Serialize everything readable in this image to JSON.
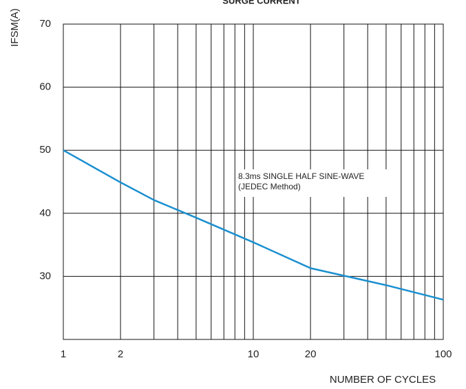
{
  "chart_data": {
    "type": "line",
    "title": "SURGE CURRENT",
    "xlabel": "NUMBER OF CYCLES",
    "ylabel": "IFSM(A)",
    "annotation": [
      "8.3ms SINGLE HALF SINE-WAVE",
      "(JEDEC Method)"
    ],
    "xscale": "log",
    "xlim": [
      1,
      100
    ],
    "xticks": [
      1,
      2,
      10,
      20,
      100
    ],
    "xgrid": [
      1,
      2,
      3,
      4,
      5,
      6,
      7,
      8,
      9,
      10,
      20,
      30,
      40,
      50,
      60,
      70,
      80,
      90,
      100
    ],
    "ylim": [
      20,
      70
    ],
    "yticks": [
      30,
      40,
      50,
      60,
      70
    ],
    "grid": true,
    "series": [
      {
        "color": "#1a8fd0",
        "x": [
          1,
          2,
          3,
          5,
          10,
          20,
          50,
          100
        ],
        "values": [
          50,
          44.9,
          42.1,
          39.3,
          35.4,
          31.3,
          28.6,
          26.3
        ]
      }
    ]
  }
}
